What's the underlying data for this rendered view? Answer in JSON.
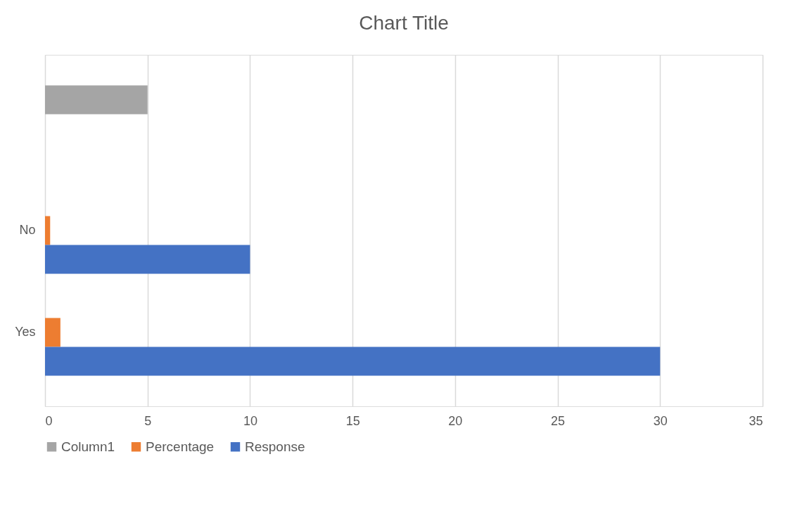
{
  "chart_data": {
    "type": "bar",
    "title": "Chart Title",
    "orientation": "horizontal",
    "categories": [
      null,
      "No",
      "Yes"
    ],
    "series": [
      {
        "name": "Column1",
        "color": "#a5a5a5",
        "values": [
          5,
          null,
          null
        ]
      },
      {
        "name": "Percentage",
        "color": "#ed7d31",
        "values": [
          null,
          0.25,
          0.75
        ]
      },
      {
        "name": "Response",
        "color": "#4472c4",
        "values": [
          null,
          10,
          30
        ]
      }
    ],
    "xlim": [
      0,
      35
    ],
    "xticks": [
      0,
      5,
      10,
      15,
      20,
      25,
      30,
      35
    ],
    "grid": "x",
    "legend": "bottom"
  }
}
